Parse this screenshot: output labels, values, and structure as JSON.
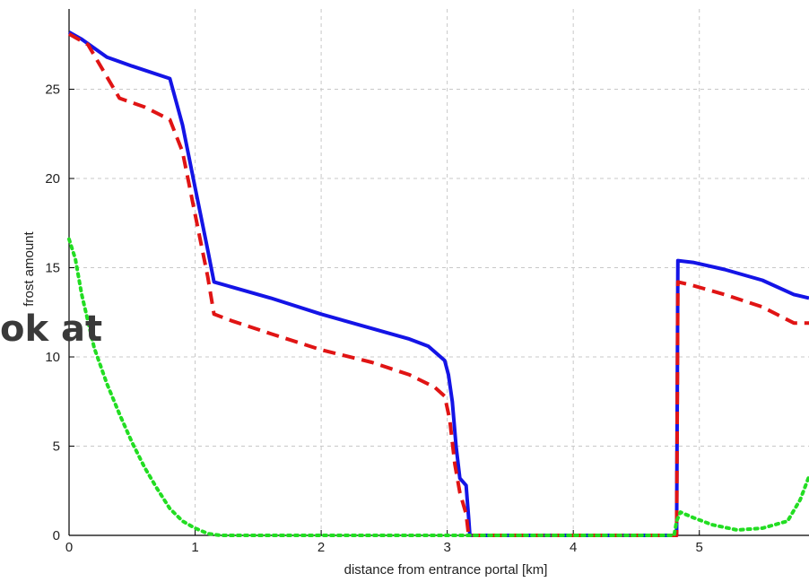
{
  "overlay_text": "ok at",
  "chart_data": {
    "type": "line",
    "xlabel": "distance from entrance portal [km]",
    "ylabel": "frost amount",
    "xlim": [
      0,
      5.87
    ],
    "ylim": [
      0,
      29.5
    ],
    "xticks": [
      0,
      1,
      2,
      3,
      4,
      5
    ],
    "yticks": [
      0,
      5,
      10,
      15,
      20,
      25
    ],
    "grid": true,
    "series": [
      {
        "color": "#1414e6",
        "style": "solid",
        "points": [
          [
            0,
            28.2
          ],
          [
            0.1,
            27.8
          ],
          [
            0.3,
            26.8
          ],
          [
            0.5,
            26.3
          ],
          [
            0.8,
            25.6
          ],
          [
            0.9,
            23
          ],
          [
            1.0,
            19.5
          ],
          [
            1.1,
            16
          ],
          [
            1.15,
            14.2
          ],
          [
            1.3,
            13.9
          ],
          [
            1.6,
            13.3
          ],
          [
            2.0,
            12.4
          ],
          [
            2.4,
            11.6
          ],
          [
            2.7,
            11.0
          ],
          [
            2.85,
            10.6
          ],
          [
            2.98,
            9.8
          ],
          [
            3.01,
            9
          ],
          [
            3.04,
            7.5
          ],
          [
            3.07,
            5.0
          ],
          [
            3.1,
            3.2
          ],
          [
            3.15,
            2.8
          ],
          [
            3.17,
            1.0
          ],
          [
            3.18,
            0
          ],
          [
            4.82,
            0
          ],
          [
            4.83,
            15.4
          ],
          [
            4.95,
            15.3
          ],
          [
            5.2,
            14.9
          ],
          [
            5.5,
            14.3
          ],
          [
            5.75,
            13.5
          ],
          [
            5.87,
            13.3
          ]
        ]
      },
      {
        "color": "#e01414",
        "style": "dashed",
        "points": [
          [
            0,
            28.1
          ],
          [
            0.15,
            27.5
          ],
          [
            0.4,
            24.5
          ],
          [
            0.6,
            24.0
          ],
          [
            0.8,
            23.3
          ],
          [
            0.9,
            21.5
          ],
          [
            1.0,
            18
          ],
          [
            1.1,
            14.5
          ],
          [
            1.15,
            12.4
          ],
          [
            1.3,
            12.0
          ],
          [
            1.6,
            11.3
          ],
          [
            2.0,
            10.4
          ],
          [
            2.4,
            9.7
          ],
          [
            2.7,
            9.0
          ],
          [
            2.9,
            8.3
          ],
          [
            2.98,
            7.8
          ],
          [
            3.02,
            6.5
          ],
          [
            3.06,
            4.0
          ],
          [
            3.1,
            2.4
          ],
          [
            3.15,
            1.2
          ],
          [
            3.17,
            0
          ],
          [
            4.82,
            0
          ],
          [
            4.83,
            14.2
          ],
          [
            4.95,
            14.0
          ],
          [
            5.2,
            13.5
          ],
          [
            5.5,
            12.8
          ],
          [
            5.75,
            11.9
          ],
          [
            5.87,
            11.9
          ]
        ]
      },
      {
        "color": "#22dd22",
        "style": "dotted",
        "points": [
          [
            0,
            16.6
          ],
          [
            0.05,
            15.5
          ],
          [
            0.1,
            13.5
          ],
          [
            0.2,
            10.5
          ],
          [
            0.3,
            8.5
          ],
          [
            0.4,
            6.8
          ],
          [
            0.5,
            5.2
          ],
          [
            0.6,
            3.8
          ],
          [
            0.7,
            2.6
          ],
          [
            0.8,
            1.5
          ],
          [
            0.9,
            0.8
          ],
          [
            1.0,
            0.4
          ],
          [
            1.1,
            0.1
          ],
          [
            1.2,
            0
          ],
          [
            4.8,
            0
          ],
          [
            4.82,
            0.8
          ],
          [
            4.85,
            1.3
          ],
          [
            4.95,
            1.0
          ],
          [
            5.1,
            0.6
          ],
          [
            5.3,
            0.3
          ],
          [
            5.5,
            0.4
          ],
          [
            5.7,
            0.8
          ],
          [
            5.8,
            2.0
          ],
          [
            5.87,
            3.3
          ]
        ]
      }
    ]
  }
}
